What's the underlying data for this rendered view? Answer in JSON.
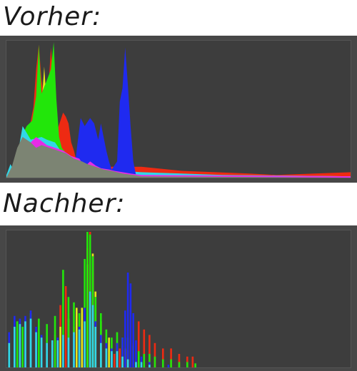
{
  "labels": {
    "before": "Vorher:",
    "after": "Nachher:"
  },
  "colors": {
    "red": "#ee2a12",
    "yellow": "#e6e61a",
    "green": "#22e60a",
    "cyan": "#31d7e8",
    "blue": "#1f2af0",
    "magenta": "#e62ce6",
    "gray": "#7c8473",
    "background": "#3d3d3d",
    "frame": "#474747"
  },
  "chart_data": [
    {
      "type": "area",
      "x_range": [
        0,
        255
      ],
      "y_range": [
        0,
        100
      ],
      "series": [
        {
          "color_key": "red",
          "points": [
            [
              10,
              0
            ],
            [
              20,
              52
            ],
            [
              22,
              80
            ],
            [
              24,
              98
            ],
            [
              26,
              72
            ],
            [
              30,
              46
            ],
            [
              31,
              65
            ],
            [
              33,
              96
            ],
            [
              34,
              82
            ],
            [
              36,
              42
            ],
            [
              38,
              36
            ],
            [
              42,
              48
            ],
            [
              44,
              45
            ],
            [
              46,
              40
            ],
            [
              48,
              26
            ],
            [
              50,
              20
            ],
            [
              52,
              12
            ],
            [
              60,
              8
            ],
            [
              100,
              8
            ],
            [
              130,
              5
            ],
            [
              180,
              3
            ],
            [
              200,
              2
            ],
            [
              255,
              4
            ]
          ]
        },
        {
          "color_key": "yellow",
          "points": [
            [
              20,
              2
            ],
            [
              22,
              28
            ],
            [
              25,
              38
            ],
            [
              28,
              82
            ],
            [
              30,
              52
            ],
            [
              32,
              66
            ],
            [
              34,
              42
            ],
            [
              36,
              28
            ],
            [
              38,
              22
            ],
            [
              40,
              18
            ],
            [
              42,
              10
            ],
            [
              48,
              5
            ],
            [
              60,
              4
            ],
            [
              100,
              3
            ],
            [
              150,
              2
            ],
            [
              255,
              1
            ]
          ]
        },
        {
          "color_key": "green",
          "points": [
            [
              5,
              2
            ],
            [
              8,
              10
            ],
            [
              11,
              30
            ],
            [
              15,
              38
            ],
            [
              19,
              42
            ],
            [
              22,
              60
            ],
            [
              24,
              98
            ],
            [
              26,
              62
            ],
            [
              30,
              72
            ],
            [
              33,
              80
            ],
            [
              35,
              100
            ],
            [
              37,
              58
            ],
            [
              39,
              30
            ],
            [
              41,
              22
            ],
            [
              46,
              16
            ],
            [
              54,
              10
            ],
            [
              70,
              6
            ],
            [
              100,
              3
            ],
            [
              130,
              2
            ],
            [
              255,
              1
            ]
          ]
        },
        {
          "color_key": "cyan",
          "points": [
            [
              0,
              2
            ],
            [
              3,
              10
            ],
            [
              6,
              4
            ],
            [
              12,
              38
            ],
            [
              18,
              28
            ],
            [
              26,
              30
            ],
            [
              30,
              28
            ],
            [
              36,
              26
            ],
            [
              40,
              20
            ],
            [
              46,
              14
            ],
            [
              56,
              10
            ],
            [
              70,
              6
            ],
            [
              100,
              4
            ],
            [
              160,
              2
            ],
            [
              255,
              1
            ]
          ]
        },
        {
          "color_key": "blue",
          "points": [
            [
              0,
              0
            ],
            [
              50,
              0
            ],
            [
              52,
              20
            ],
            [
              55,
              44
            ],
            [
              58,
              38
            ],
            [
              62,
              44
            ],
            [
              65,
              40
            ],
            [
              68,
              28
            ],
            [
              70,
              40
            ],
            [
              72,
              30
            ],
            [
              74,
              20
            ],
            [
              76,
              12
            ],
            [
              78,
              6
            ],
            [
              82,
              12
            ],
            [
              84,
              56
            ],
            [
              86,
              66
            ],
            [
              88,
              96
            ],
            [
              90,
              68
            ],
            [
              92,
              38
            ],
            [
              94,
              12
            ],
            [
              96,
              2
            ],
            [
              100,
              0
            ],
            [
              255,
              0
            ]
          ]
        },
        {
          "color_key": "magenta",
          "points": [
            [
              5,
              4
            ],
            [
              14,
              28
            ],
            [
              18,
              26
            ],
            [
              22,
              30
            ],
            [
              30,
              24
            ],
            [
              36,
              22
            ],
            [
              42,
              20
            ],
            [
              48,
              16
            ],
            [
              54,
              14
            ],
            [
              58,
              8
            ],
            [
              62,
              12
            ],
            [
              66,
              9
            ],
            [
              70,
              7
            ],
            [
              76,
              6
            ],
            [
              80,
              5
            ],
            [
              86,
              4
            ],
            [
              92,
              3
            ],
            [
              100,
              2
            ],
            [
              255,
              1
            ]
          ]
        },
        {
          "color_key": "gray",
          "points": [
            [
              0,
              0
            ],
            [
              4,
              8
            ],
            [
              8,
              22
            ],
            [
              12,
              30
            ],
            [
              18,
              26
            ],
            [
              22,
              22
            ],
            [
              26,
              24
            ],
            [
              32,
              22
            ],
            [
              38,
              20
            ],
            [
              44,
              18
            ],
            [
              50,
              14
            ],
            [
              56,
              12
            ],
            [
              60,
              10
            ],
            [
              66,
              8
            ],
            [
              72,
              6
            ],
            [
              78,
              5
            ],
            [
              86,
              3
            ],
            [
              94,
              2
            ],
            [
              100,
              1
            ],
            [
              255,
              0
            ]
          ]
        }
      ]
    },
    {
      "type": "bar",
      "x_range": [
        0,
        255
      ],
      "y_range": [
        0,
        100
      ],
      "series": [
        {
          "color_key": "red",
          "points": [
            [
              30,
              10
            ],
            [
              36,
              24
            ],
            [
              40,
              46
            ],
            [
              44,
              60
            ],
            [
              46,
              40
            ],
            [
              50,
              30
            ],
            [
              56,
              36
            ],
            [
              60,
              88
            ],
            [
              62,
              100
            ],
            [
              64,
              70
            ],
            [
              66,
              44
            ],
            [
              70,
              22
            ],
            [
              74,
              14
            ],
            [
              80,
              10
            ],
            [
              84,
              14
            ],
            [
              86,
              16
            ],
            [
              90,
              12
            ],
            [
              94,
              18
            ],
            [
              98,
              34
            ],
            [
              102,
              28
            ],
            [
              106,
              24
            ],
            [
              110,
              18
            ],
            [
              116,
              14
            ],
            [
              122,
              14
            ],
            [
              128,
              10
            ],
            [
              134,
              8
            ],
            [
              138,
              8
            ]
          ]
        },
        {
          "color_key": "yellow",
          "points": [
            [
              40,
              30
            ],
            [
              46,
              36
            ],
            [
              52,
              44
            ],
            [
              56,
              44
            ],
            [
              60,
              76
            ],
            [
              64,
              84
            ],
            [
              66,
              56
            ],
            [
              70,
              34
            ],
            [
              76,
              22
            ],
            [
              82,
              18
            ],
            [
              88,
              14
            ]
          ]
        },
        {
          "color_key": "green",
          "points": [
            [
              2,
              22
            ],
            [
              8,
              34
            ],
            [
              12,
              30
            ],
            [
              18,
              40
            ],
            [
              24,
              36
            ],
            [
              30,
              32
            ],
            [
              36,
              38
            ],
            [
              42,
              72
            ],
            [
              46,
              52
            ],
            [
              50,
              48
            ],
            [
              54,
              40
            ],
            [
              58,
              80
            ],
            [
              60,
              100
            ],
            [
              62,
              98
            ],
            [
              64,
              82
            ],
            [
              66,
              52
            ],
            [
              70,
              40
            ],
            [
              74,
              28
            ],
            [
              78,
              22
            ],
            [
              82,
              26
            ],
            [
              86,
              22
            ],
            [
              90,
              22
            ],
            [
              94,
              16
            ],
            [
              98,
              12
            ],
            [
              102,
              10
            ],
            [
              106,
              10
            ],
            [
              110,
              8
            ],
            [
              116,
              6
            ],
            [
              122,
              6
            ],
            [
              128,
              4
            ],
            [
              134,
              4
            ],
            [
              140,
              3
            ]
          ]
        },
        {
          "color_key": "blue",
          "points": [
            [
              0,
              0
            ],
            [
              2,
              26
            ],
            [
              6,
              38
            ],
            [
              10,
              36
            ],
            [
              14,
              38
            ],
            [
              18,
              42
            ],
            [
              22,
              30
            ],
            [
              26,
              24
            ],
            [
              30,
              18
            ],
            [
              34,
              16
            ],
            [
              38,
              22
            ],
            [
              42,
              16
            ],
            [
              46,
              20
            ],
            [
              50,
              24
            ],
            [
              54,
              30
            ],
            [
              58,
              44
            ],
            [
              62,
              46
            ],
            [
              66,
              34
            ],
            [
              70,
              24
            ],
            [
              74,
              18
            ],
            [
              78,
              14
            ],
            [
              82,
              18
            ],
            [
              86,
              22
            ],
            [
              88,
              42
            ],
            [
              90,
              70
            ],
            [
              92,
              62
            ],
            [
              94,
              40
            ],
            [
              96,
              20
            ],
            [
              100,
              8
            ],
            [
              106,
              4
            ],
            [
              120,
              2
            ],
            [
              255,
              0
            ]
          ]
        },
        {
          "color_key": "cyan",
          "points": [
            [
              2,
              18
            ],
            [
              6,
              30
            ],
            [
              10,
              32
            ],
            [
              14,
              34
            ],
            [
              18,
              36
            ],
            [
              22,
              26
            ],
            [
              26,
              22
            ],
            [
              30,
              18
            ],
            [
              34,
              20
            ],
            [
              38,
              20
            ],
            [
              42,
              24
            ],
            [
              46,
              22
            ],
            [
              50,
              26
            ],
            [
              54,
              28
            ],
            [
              58,
              34
            ],
            [
              62,
              56
            ],
            [
              64,
              46
            ],
            [
              66,
              30
            ],
            [
              70,
              18
            ],
            [
              74,
              14
            ],
            [
              78,
              12
            ],
            [
              82,
              12
            ],
            [
              86,
              8
            ],
            [
              90,
              6
            ],
            [
              96,
              4
            ],
            [
              100,
              4
            ],
            [
              106,
              2
            ]
          ]
        }
      ]
    }
  ]
}
